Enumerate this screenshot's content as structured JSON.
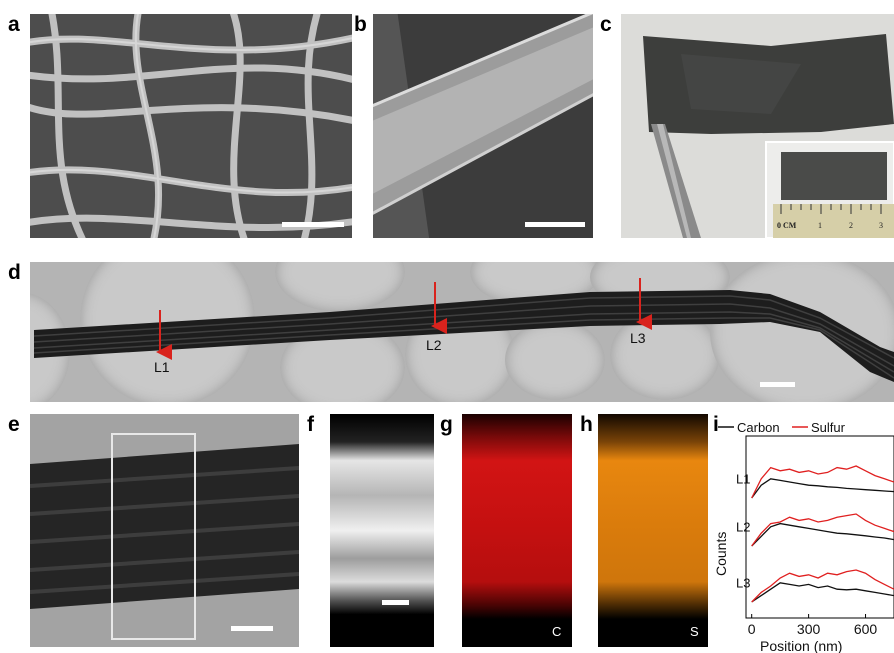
{
  "panels": {
    "a": "a",
    "b": "b",
    "c": "c",
    "d": "d",
    "e": "e",
    "f": "f",
    "g": "g",
    "h": "h",
    "i": "i"
  },
  "tem_line_labels": [
    "L1",
    "L2",
    "L3"
  ],
  "ruler": {
    "unit": "0 CM",
    "ticks": [
      "1",
      "2",
      "3"
    ]
  },
  "map_labels": {
    "carbon": "C",
    "sulfur": "S"
  },
  "colors": {
    "carbon_map": "#c41010",
    "sulfur_map": "#e8870f",
    "arrow": "#d9231d",
    "carbon_line": "#111111",
    "sulfur_line": "#e02020"
  },
  "chart_data": {
    "type": "line",
    "xlabel": "Position (nm)",
    "ylabel": "Counts",
    "xticks": [
      0,
      300,
      600
    ],
    "xlim": [
      -30,
      750
    ],
    "legend": [
      "Carbon",
      "Sulfur"
    ],
    "legend_position": "top",
    "groups": [
      {
        "name": "L1",
        "x": [
          0,
          50,
          100,
          150,
          200,
          250,
          300,
          350,
          400,
          450,
          500,
          550,
          600,
          650,
          700,
          750
        ],
        "carbon": [
          0.0,
          0.4,
          0.6,
          0.55,
          0.5,
          0.45,
          0.4,
          0.38,
          0.35,
          0.33,
          0.3,
          0.28,
          0.26,
          0.24,
          0.22,
          0.2
        ],
        "sulfur": [
          0.0,
          0.6,
          0.95,
          0.85,
          0.9,
          0.8,
          0.85,
          0.75,
          0.8,
          0.95,
          0.9,
          1.0,
          0.85,
          0.7,
          0.6,
          0.5
        ]
      },
      {
        "name": "L2",
        "x": [
          0,
          50,
          100,
          150,
          200,
          250,
          300,
          350,
          400,
          450,
          500,
          550,
          600,
          650,
          700,
          750
        ],
        "carbon": [
          0.0,
          0.3,
          0.6,
          0.7,
          0.65,
          0.6,
          0.55,
          0.5,
          0.45,
          0.4,
          0.38,
          0.35,
          0.32,
          0.28,
          0.25,
          0.2
        ],
        "sulfur": [
          0.0,
          0.4,
          0.7,
          0.75,
          0.9,
          0.8,
          0.85,
          0.75,
          0.8,
          0.9,
          0.95,
          1.0,
          0.8,
          0.65,
          0.55,
          0.45
        ]
      },
      {
        "name": "L3",
        "x": [
          0,
          50,
          100,
          150,
          200,
          250,
          300,
          350,
          400,
          450,
          500,
          550,
          600,
          650,
          700,
          750
        ],
        "carbon": [
          0.0,
          0.2,
          0.4,
          0.6,
          0.55,
          0.5,
          0.55,
          0.45,
          0.5,
          0.4,
          0.38,
          0.4,
          0.35,
          0.3,
          0.25,
          0.2
        ],
        "sulfur": [
          0.0,
          0.3,
          0.5,
          0.75,
          0.9,
          0.8,
          0.85,
          0.75,
          0.9,
          0.85,
          0.95,
          1.0,
          0.9,
          0.7,
          0.55,
          0.4
        ]
      }
    ]
  }
}
